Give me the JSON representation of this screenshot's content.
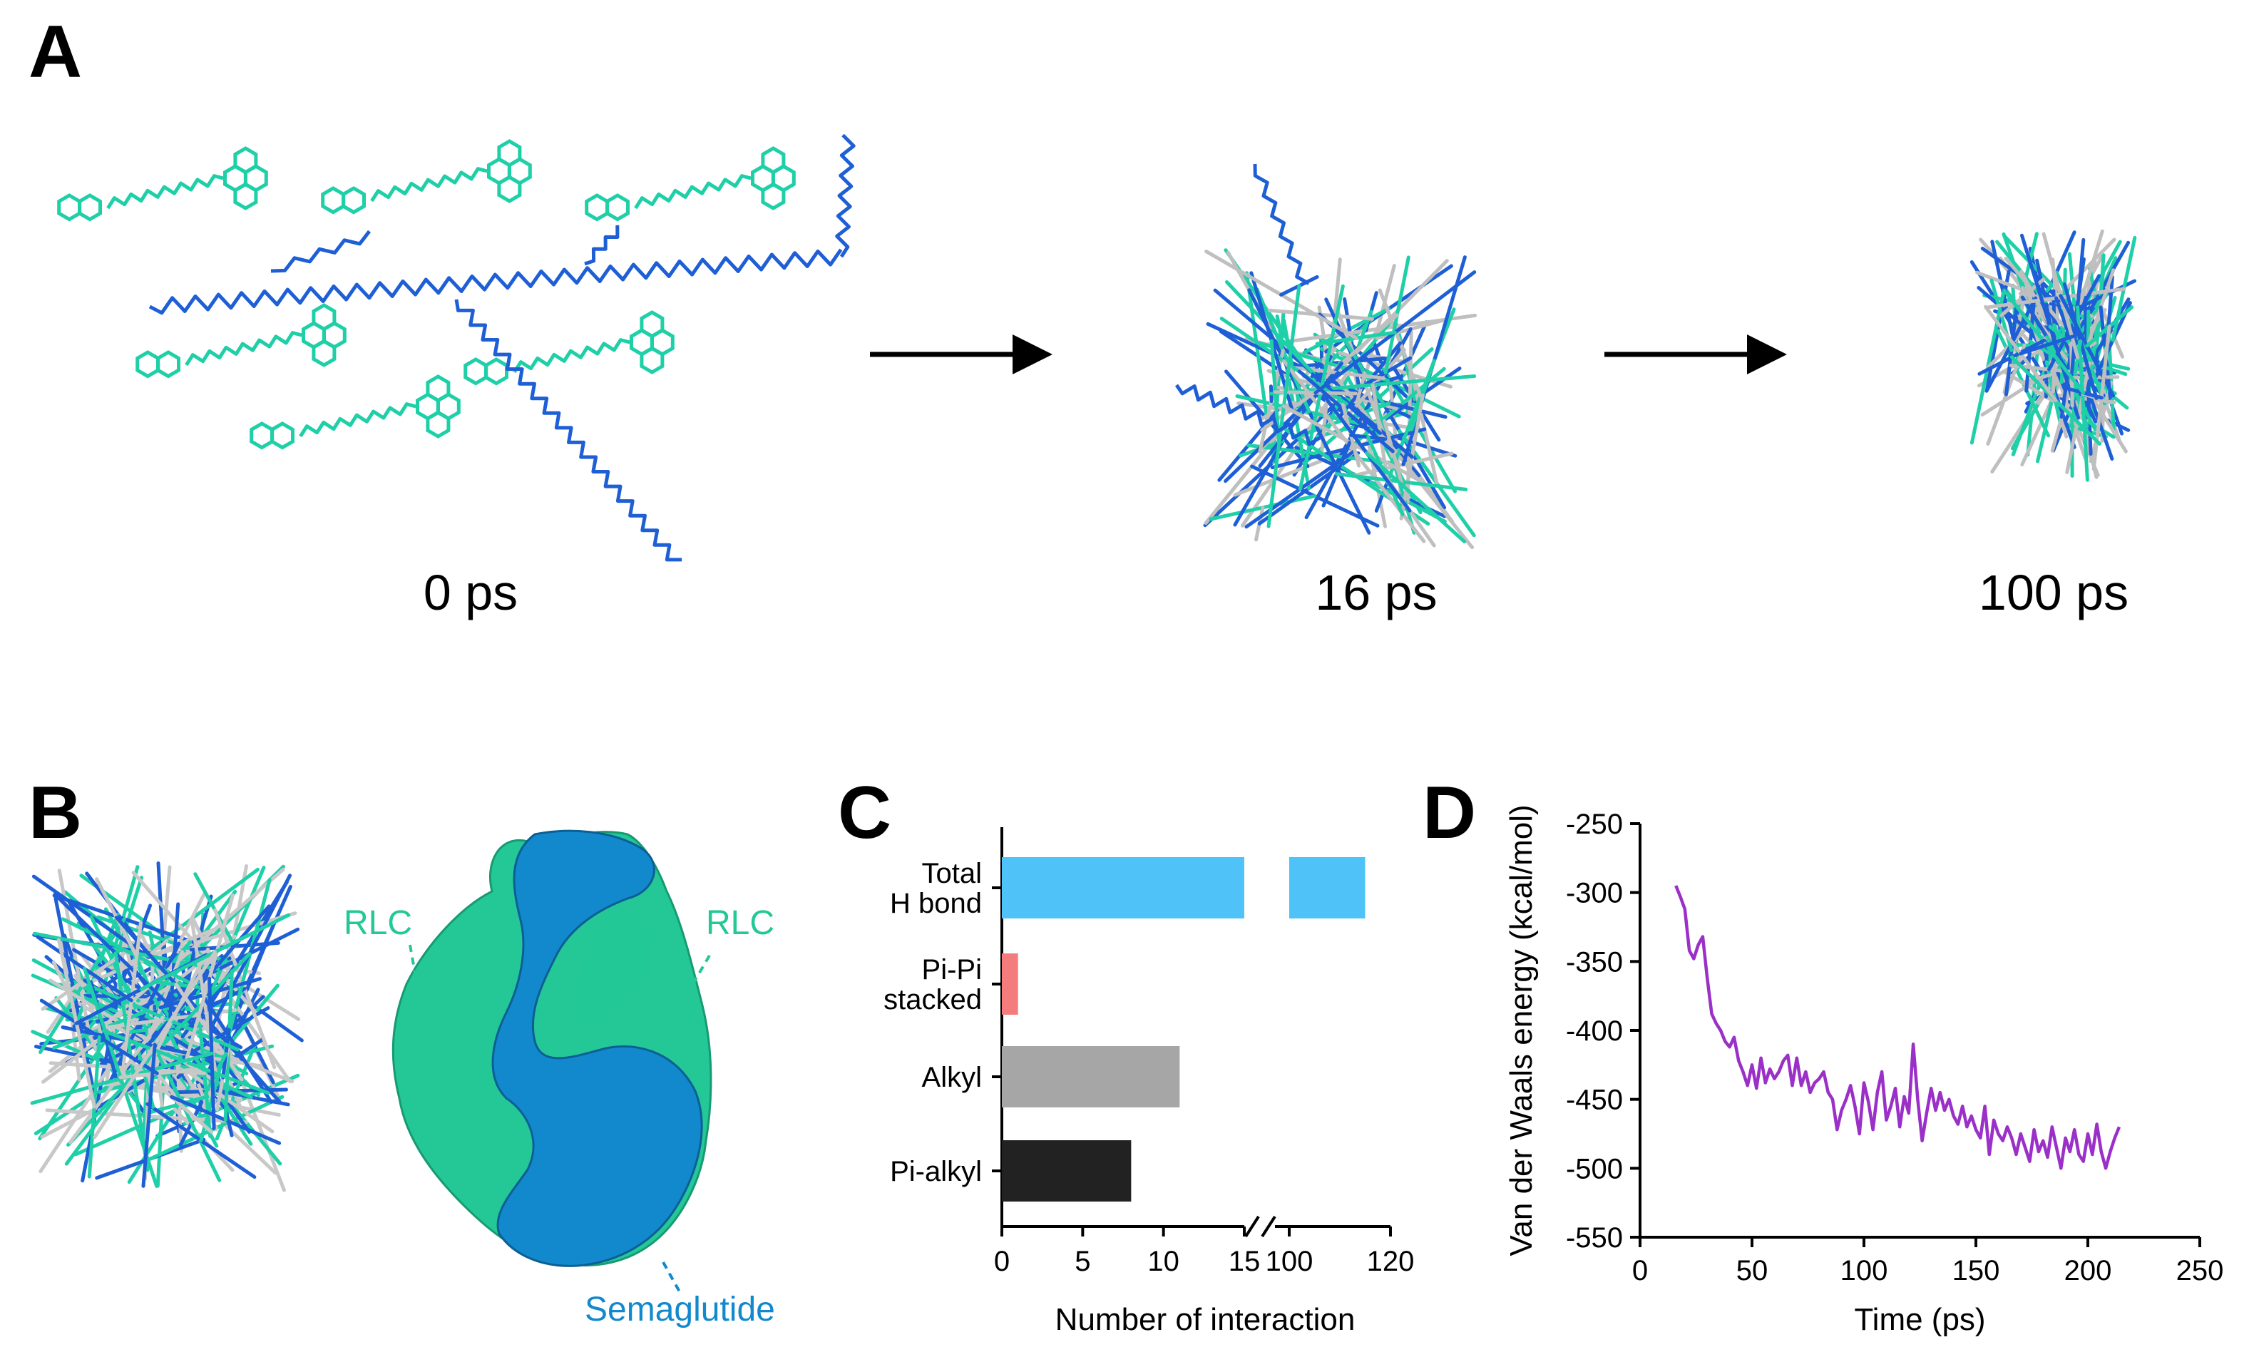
{
  "panels": {
    "a": "A",
    "b": "B",
    "c": "C",
    "d": "D"
  },
  "panel_a": {
    "time_labels": [
      "0 ps",
      "16 ps",
      "100 ps"
    ]
  },
  "panel_b": {
    "rlc_left": "RLC",
    "rlc_right": "RLC",
    "semaglutide": "Semaglutide"
  },
  "colors": {
    "teal": "#1fcfa8",
    "blue": "#1e5fd6",
    "surface_teal": "#23c896",
    "surface_blue": "#1289cd",
    "hbond": "#4fc3f7",
    "pipi": "#f47c7c",
    "alkyl": "#a6a6a6",
    "pialkyl": "#222222",
    "line": "#9b30c8"
  },
  "chart_data": [
    {
      "type": "bar",
      "orientation": "horizontal",
      "categories": [
        "Total\nH bond",
        "Pi-Pi\nstacked",
        "Alkyl",
        "Pi-alkyl"
      ],
      "values": [
        115,
        1,
        11,
        8
      ],
      "xlabel": "Number of interaction",
      "ylabel": "",
      "x_break": {
        "segment1": [
          0,
          15
        ],
        "segment2": [
          100,
          120
        ]
      },
      "xticks": [
        "0",
        "5",
        "10",
        "15",
        "100",
        "120"
      ],
      "grid": false
    },
    {
      "type": "line",
      "xlabel": "Time (ps)",
      "ylabel": "Van der Waals energy (kcal/mol)",
      "xlim": [
        0,
        250
      ],
      "ylim": [
        -550,
        -250
      ],
      "xticks": [
        "0",
        "50",
        "100",
        "150",
        "200",
        "250"
      ],
      "yticks": [
        "-250",
        "-300",
        "-350",
        "-400",
        "-450",
        "-500",
        "-550"
      ],
      "grid": false,
      "x": [
        16,
        18,
        20,
        22,
        24,
        26,
        28,
        30,
        32,
        34,
        36,
        38,
        40,
        42,
        44,
        46,
        48,
        50,
        52,
        54,
        56,
        58,
        60,
        62,
        64,
        66,
        68,
        70,
        72,
        74,
        76,
        78,
        80,
        82,
        84,
        86,
        88,
        90,
        92,
        94,
        96,
        98,
        100,
        102,
        104,
        106,
        108,
        110,
        112,
        114,
        116,
        118,
        120,
        122,
        124,
        126,
        128,
        130,
        132,
        134,
        136,
        138,
        140,
        142,
        144,
        146,
        148,
        150,
        152,
        154,
        156,
        158,
        160,
        162,
        164,
        166,
        168,
        170,
        172,
        174,
        176,
        178,
        180,
        182,
        184,
        186,
        188,
        190,
        192,
        194,
        196,
        198,
        200,
        202,
        204,
        206,
        208,
        210,
        212,
        214
      ],
      "y": [
        -295,
        -303,
        -312,
        -342,
        -348,
        -338,
        -332,
        -362,
        -388,
        -395,
        -400,
        -408,
        -412,
        -405,
        -422,
        -430,
        -440,
        -425,
        -442,
        -420,
        -438,
        -428,
        -435,
        -430,
        -422,
        -418,
        -440,
        -420,
        -440,
        -430,
        -445,
        -438,
        -435,
        -430,
        -445,
        -450,
        -472,
        -458,
        -450,
        -440,
        -455,
        -475,
        -438,
        -452,
        -472,
        -445,
        -430,
        -465,
        -455,
        -442,
        -470,
        -448,
        -460,
        -410,
        -450,
        -480,
        -460,
        -442,
        -458,
        -445,
        -458,
        -450,
        -462,
        -468,
        -455,
        -470,
        -462,
        -472,
        -478,
        -455,
        -490,
        -465,
        -475,
        -480,
        -470,
        -478,
        -490,
        -475,
        -485,
        -495,
        -472,
        -488,
        -480,
        -492,
        -470,
        -485,
        -500,
        -478,
        -488,
        -472,
        -490,
        -495,
        -475,
        -490,
        -468,
        -488,
        -500,
        -488,
        -478,
        -470
      ]
    }
  ]
}
